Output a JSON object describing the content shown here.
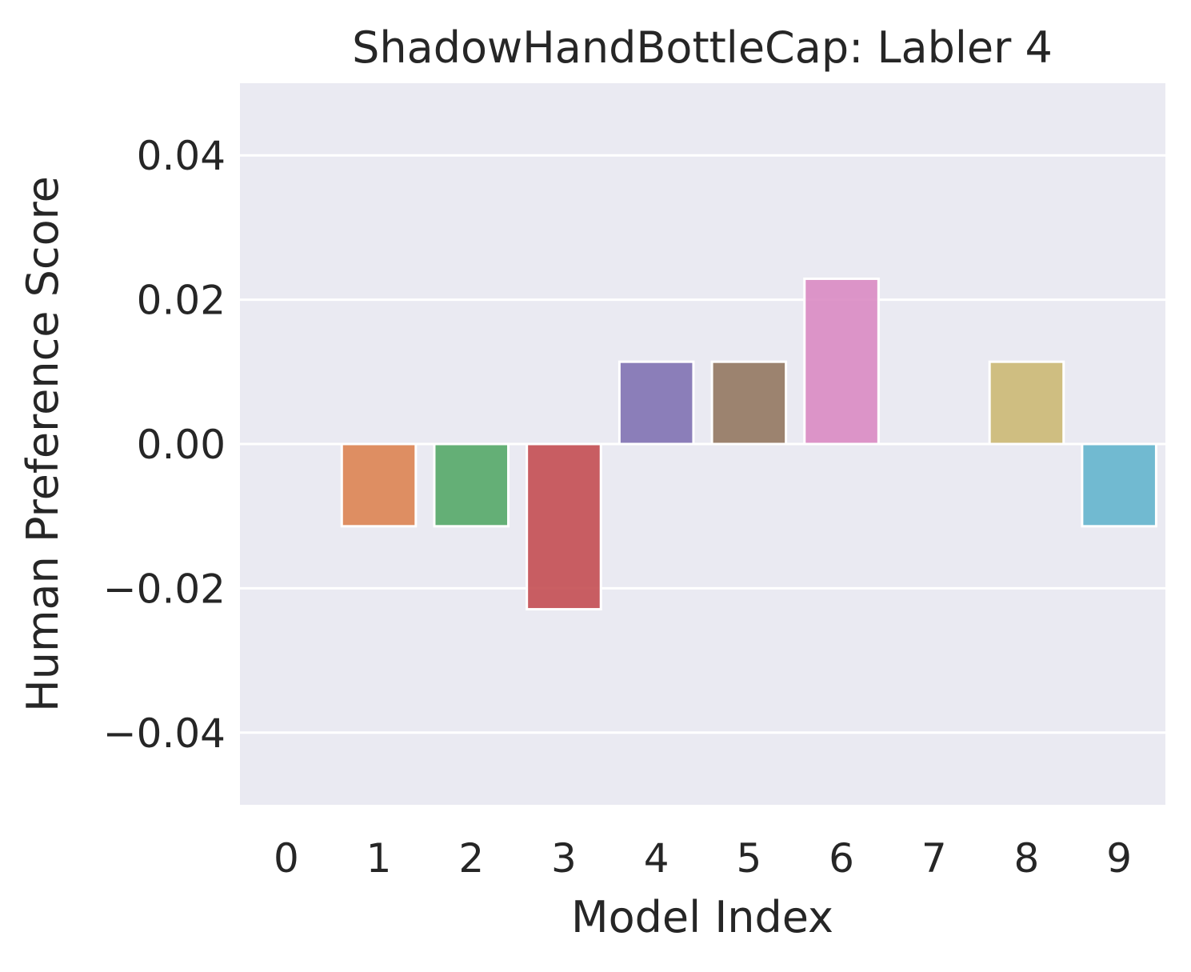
{
  "chart_data": {
    "type": "bar",
    "title": "ShadowHandBottleCap: Labler 4",
    "xlabel": "Model Index",
    "ylabel": "Human Preference Score",
    "categories": [
      "0",
      "1",
      "2",
      "3",
      "4",
      "5",
      "6",
      "7",
      "8",
      "9"
    ],
    "values": [
      0.0,
      -0.0114,
      -0.0114,
      -0.0229,
      0.0114,
      0.0114,
      0.0229,
      0.0,
      0.0114,
      -0.0114
    ],
    "colors": [
      "#4c72b0",
      "#dd8452",
      "#55a868",
      "#c44e52",
      "#8172b3",
      "#937860",
      "#da8bc3",
      "#8c8c8c",
      "#ccb974",
      "#64b5cd"
    ],
    "ylim": [
      -0.05,
      0.05
    ],
    "yticks": [
      -0.04,
      -0.02,
      0.0,
      0.02,
      0.04
    ],
    "ytick_labels": [
      "−0.04",
      "−0.02",
      "0.00",
      "0.02",
      "0.04"
    ],
    "grid": true,
    "background": "#eaeaf2",
    "bar_alpha": 0.9
  }
}
